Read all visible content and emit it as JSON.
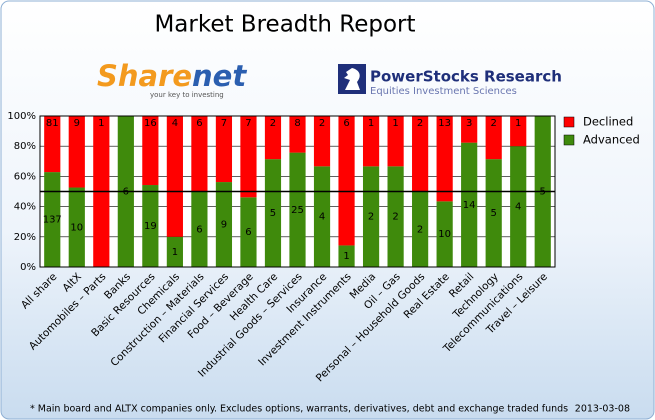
{
  "chart_data": {
    "type": "bar",
    "stacked": "percent",
    "title": "Market Breadth Report",
    "logos": [
      {
        "name_parts": [
          "Share",
          "net"
        ],
        "tagline": "your key to investing"
      },
      {
        "name": "PowerStocks  Research",
        "tagline": "Equities Investment Sciences"
      }
    ],
    "categories": [
      "All share",
      "AltX",
      "Automobiles – Parts",
      "Banks",
      "Basic Resources",
      "Chemicals",
      "Construction – Materials",
      "Financial Services",
      "Food – Beverage",
      "Health Care",
      "Industrial Goods – Services",
      "Insurance",
      "Investment Instruments",
      "Media",
      "Oil – Gas",
      "Personal – Household Goods",
      "Real Estate",
      "Retail",
      "Technology",
      "Telecommunications",
      "Travel – Leisure"
    ],
    "series": [
      {
        "name": "Declined",
        "color": "#ff0000",
        "values": [
          81,
          9,
          1,
          null,
          16,
          4,
          6,
          7,
          7,
          2,
          8,
          2,
          6,
          1,
          1,
          2,
          13,
          3,
          2,
          1,
          null
        ]
      },
      {
        "name": "Advanced",
        "color": "#3f8a0c",
        "values": [
          137,
          10,
          null,
          6,
          19,
          1,
          6,
          9,
          6,
          5,
          25,
          4,
          1,
          2,
          2,
          2,
          10,
          14,
          5,
          4,
          5
        ]
      }
    ],
    "ylim": [
      0,
      100
    ],
    "yticks": [
      {
        "value": 0,
        "label": "0%"
      },
      {
        "value": 20,
        "label": "20%"
      },
      {
        "value": 40,
        "label": "40%"
      },
      {
        "value": 60,
        "label": "60%"
      },
      {
        "value": 80,
        "label": "80%"
      },
      {
        "value": 100,
        "label": "100%"
      }
    ],
    "midline": 50,
    "grid": true,
    "legend": "right",
    "note": "* Main board and ALTX companies only. Excludes options, warrants, derivatives, debt and exchange traded funds",
    "date": "2013-03-08"
  }
}
